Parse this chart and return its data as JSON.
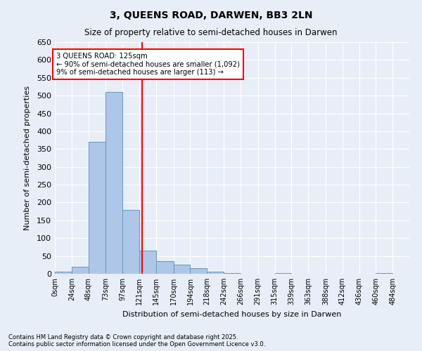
{
  "title": "3, QUEENS ROAD, DARWEN, BB3 2LN",
  "subtitle": "Size of property relative to semi-detached houses in Darwen",
  "xlabel": "Distribution of semi-detached houses by size in Darwen",
  "ylabel": "Number of semi-detached properties",
  "bin_labels": [
    "0sqm",
    "24sqm",
    "48sqm",
    "73sqm",
    "97sqm",
    "121sqm",
    "145sqm",
    "170sqm",
    "194sqm",
    "218sqm",
    "242sqm",
    "266sqm",
    "291sqm",
    "315sqm",
    "339sqm",
    "363sqm",
    "388sqm",
    "412sqm",
    "436sqm",
    "460sqm",
    "484sqm"
  ],
  "bin_edges": [
    0,
    24,
    48,
    73,
    97,
    121,
    145,
    170,
    194,
    218,
    242,
    266,
    291,
    315,
    339,
    363,
    388,
    412,
    436,
    460,
    484,
    508
  ],
  "bar_heights": [
    5,
    20,
    370,
    510,
    180,
    65,
    35,
    25,
    15,
    5,
    2,
    0,
    0,
    1,
    0,
    0,
    0,
    0,
    0,
    1,
    0
  ],
  "bar_color": "#aec6e8",
  "bar_edge_color": "#6699bb",
  "vline_x": 125,
  "vline_color": "red",
  "annotation_text": "3 QUEENS ROAD: 125sqm\n← 90% of semi-detached houses are smaller (1,092)\n9% of semi-detached houses are larger (113) →",
  "annotation_box_color": "white",
  "annotation_box_edge": "red",
  "ylim": [
    0,
    650
  ],
  "yticks": [
    0,
    50,
    100,
    150,
    200,
    250,
    300,
    350,
    400,
    450,
    500,
    550,
    600,
    650
  ],
  "background_color": "#e8eef8",
  "grid_color": "white",
  "footnote": "Contains HM Land Registry data © Crown copyright and database right 2025.\nContains public sector information licensed under the Open Government Licence v3.0."
}
